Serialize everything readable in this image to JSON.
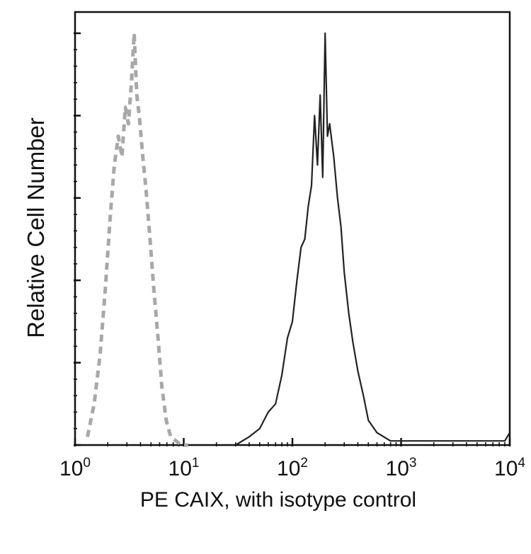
{
  "chart_data": {
    "type": "line",
    "xscale": "log",
    "xlim": [
      1,
      10000
    ],
    "ylim": [
      0,
      100
    ],
    "xlabel": "PE CAIX, with isotype control",
    "ylabel": "Relative Cell Number",
    "x_tick_labels": [
      {
        "base": "10",
        "exp": "0",
        "value": 1
      },
      {
        "base": "10",
        "exp": "1",
        "value": 10
      },
      {
        "base": "10",
        "exp": "2",
        "value": 100
      },
      {
        "base": "10",
        "exp": "3",
        "value": 1000
      },
      {
        "base": "10",
        "exp": "4",
        "value": 10000
      }
    ],
    "grid": false,
    "series": [
      {
        "style": "dashed",
        "color": "#a8a8a8",
        "x": [
          1.3,
          1.5,
          1.7,
          1.9,
          2.1,
          2.3,
          2.5,
          2.7,
          2.9,
          3.1,
          3.3,
          3.5,
          3.7,
          3.9,
          4.2,
          4.5,
          4.9,
          5.3,
          5.8,
          6.3,
          6.9,
          7.6,
          8.5,
          9.5,
          11
        ],
        "y": [
          2,
          10,
          22,
          38,
          55,
          68,
          75,
          70,
          82,
          78,
          88,
          100,
          85,
          80,
          70,
          62,
          50,
          38,
          26,
          14,
          6,
          2,
          1,
          0,
          0
        ]
      },
      {
        "style": "solid",
        "color": "#222222",
        "x": [
          30,
          40,
          50,
          60,
          70,
          80,
          90,
          100,
          110,
          120,
          130,
          140,
          150,
          160,
          170,
          180,
          190,
          200,
          210,
          220,
          230,
          240,
          260,
          280,
          300,
          330,
          360,
          400,
          450,
          500,
          600,
          800,
          1000,
          2000,
          5000,
          9000,
          10000
        ],
        "y": [
          0,
          2,
          4,
          8,
          10,
          17,
          26,
          30,
          40,
          48,
          50,
          58,
          63,
          80,
          68,
          85,
          65,
          100,
          75,
          78,
          74,
          70,
          60,
          53,
          42,
          32,
          25,
          18,
          12,
          6,
          3,
          1,
          1,
          1,
          1,
          1,
          3
        ]
      }
    ]
  }
}
